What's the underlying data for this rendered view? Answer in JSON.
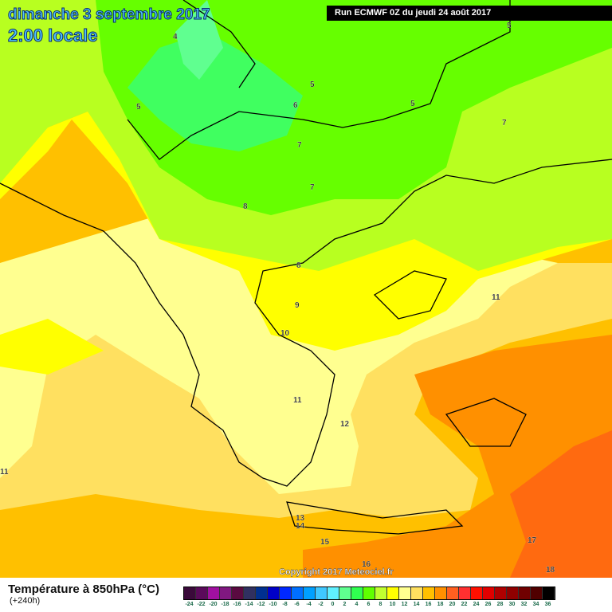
{
  "header": {
    "date": "dimanche 3 septembre 2017",
    "time": "2:00 locale",
    "run": "Run ECMWF 0Z du jeudi 24 août 2017"
  },
  "map": {
    "contour_labels": [
      "4",
      "5",
      "5",
      "5",
      "6",
      "5",
      "7",
      "7",
      "7",
      "8",
      "8",
      "11",
      "9",
      "10",
      "11",
      "12",
      "11",
      "13",
      "14",
      "15",
      "16",
      "17",
      "18"
    ],
    "copyright": "Copyright 2017 Meteociel.fr",
    "region_colors": {
      "green": "#66ff00",
      "light_green": "#40ff60",
      "yellow_green": "#b8ff20",
      "yellow": "#ffff00",
      "pale_yellow": "#ffff90",
      "light_orange": "#ffe060",
      "orange": "#ffc000",
      "dark_orange": "#ff9000",
      "red_orange": "#ff6a10"
    }
  },
  "legend": {
    "title": "Température à 850hPa (°C)",
    "subtitle": "(+240h)",
    "ticks": [
      "-24",
      "-22",
      "-20",
      "-18",
      "-16",
      "-14",
      "-12",
      "-10",
      "-8",
      "-6",
      "-4",
      "-2",
      "0",
      "2",
      "4",
      "6",
      "8",
      "10",
      "12",
      "14",
      "16",
      "18",
      "20",
      "22",
      "24",
      "26",
      "28",
      "30",
      "32",
      "34",
      "36"
    ],
    "colors": [
      "#3a0a3a",
      "#5a0a5a",
      "#a010a0",
      "#801880",
      "#5a0a40",
      "#303060",
      "#003090",
      "#0000c8",
      "#0028ff",
      "#0070ff",
      "#00a0ff",
      "#40c8ff",
      "#60f0ff",
      "#60ff90",
      "#30ff50",
      "#60ff00",
      "#c0ff30",
      "#ffff00",
      "#ffff90",
      "#ffe060",
      "#ffc000",
      "#ff9000",
      "#ff6020",
      "#ff3030",
      "#ff1000",
      "#e00000",
      "#b00000",
      "#900000",
      "#700000",
      "#500000",
      "#000000"
    ]
  }
}
